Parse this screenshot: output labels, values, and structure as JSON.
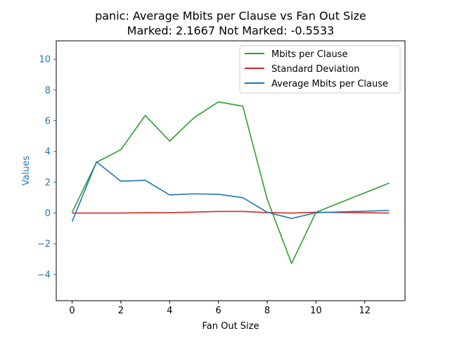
{
  "chart_data": {
    "type": "line",
    "title": "panic: Average Mbits per Clause vs Fan Out Size",
    "subtitle": "Marked: 2.1667 Not Marked: -0.5533",
    "xlabel": "Fan Out Size",
    "ylabel": "Values",
    "xlim": [
      -0.65,
      13.65
    ],
    "ylim": [
      -5.7,
      11.2
    ],
    "xticks": [
      0,
      2,
      4,
      6,
      8,
      10,
      12
    ],
    "yticks": [
      -4,
      -2,
      0,
      2,
      4,
      6,
      8,
      10
    ],
    "grid": false,
    "legend_position": "top-right",
    "colors": {
      "ytick": "#1f77b4",
      "ylabel": "#1f77b4"
    },
    "series": [
      {
        "name": "Mbits per Clause",
        "color": "#2ca02c",
        "x": [
          0,
          1,
          2,
          3,
          4,
          5,
          6,
          7,
          8,
          9,
          10,
          13
        ],
        "y": [
          0.05,
          3.3,
          4.12,
          6.35,
          4.68,
          6.2,
          7.23,
          6.95,
          0.9,
          -3.28,
          0.05,
          1.95
        ]
      },
      {
        "name": "Standard Deviation",
        "color": "#d62728",
        "x": [
          0,
          1,
          2,
          3,
          4,
          5,
          6,
          7,
          8,
          9,
          10,
          13
        ],
        "y": [
          0.0,
          0.0,
          0.0,
          0.02,
          0.03,
          0.06,
          0.1,
          0.1,
          0.03,
          0.0,
          0.05,
          0.0
        ]
      },
      {
        "name": "Average Mbits per Clause",
        "color": "#1f77b4",
        "x": [
          0,
          1,
          2,
          3,
          4,
          5,
          6,
          7,
          8,
          9,
          10,
          13
        ],
        "y": [
          -0.55,
          3.33,
          2.07,
          2.13,
          1.18,
          1.25,
          1.22,
          1.0,
          0.05,
          -0.35,
          0.02,
          0.17
        ]
      }
    ]
  }
}
